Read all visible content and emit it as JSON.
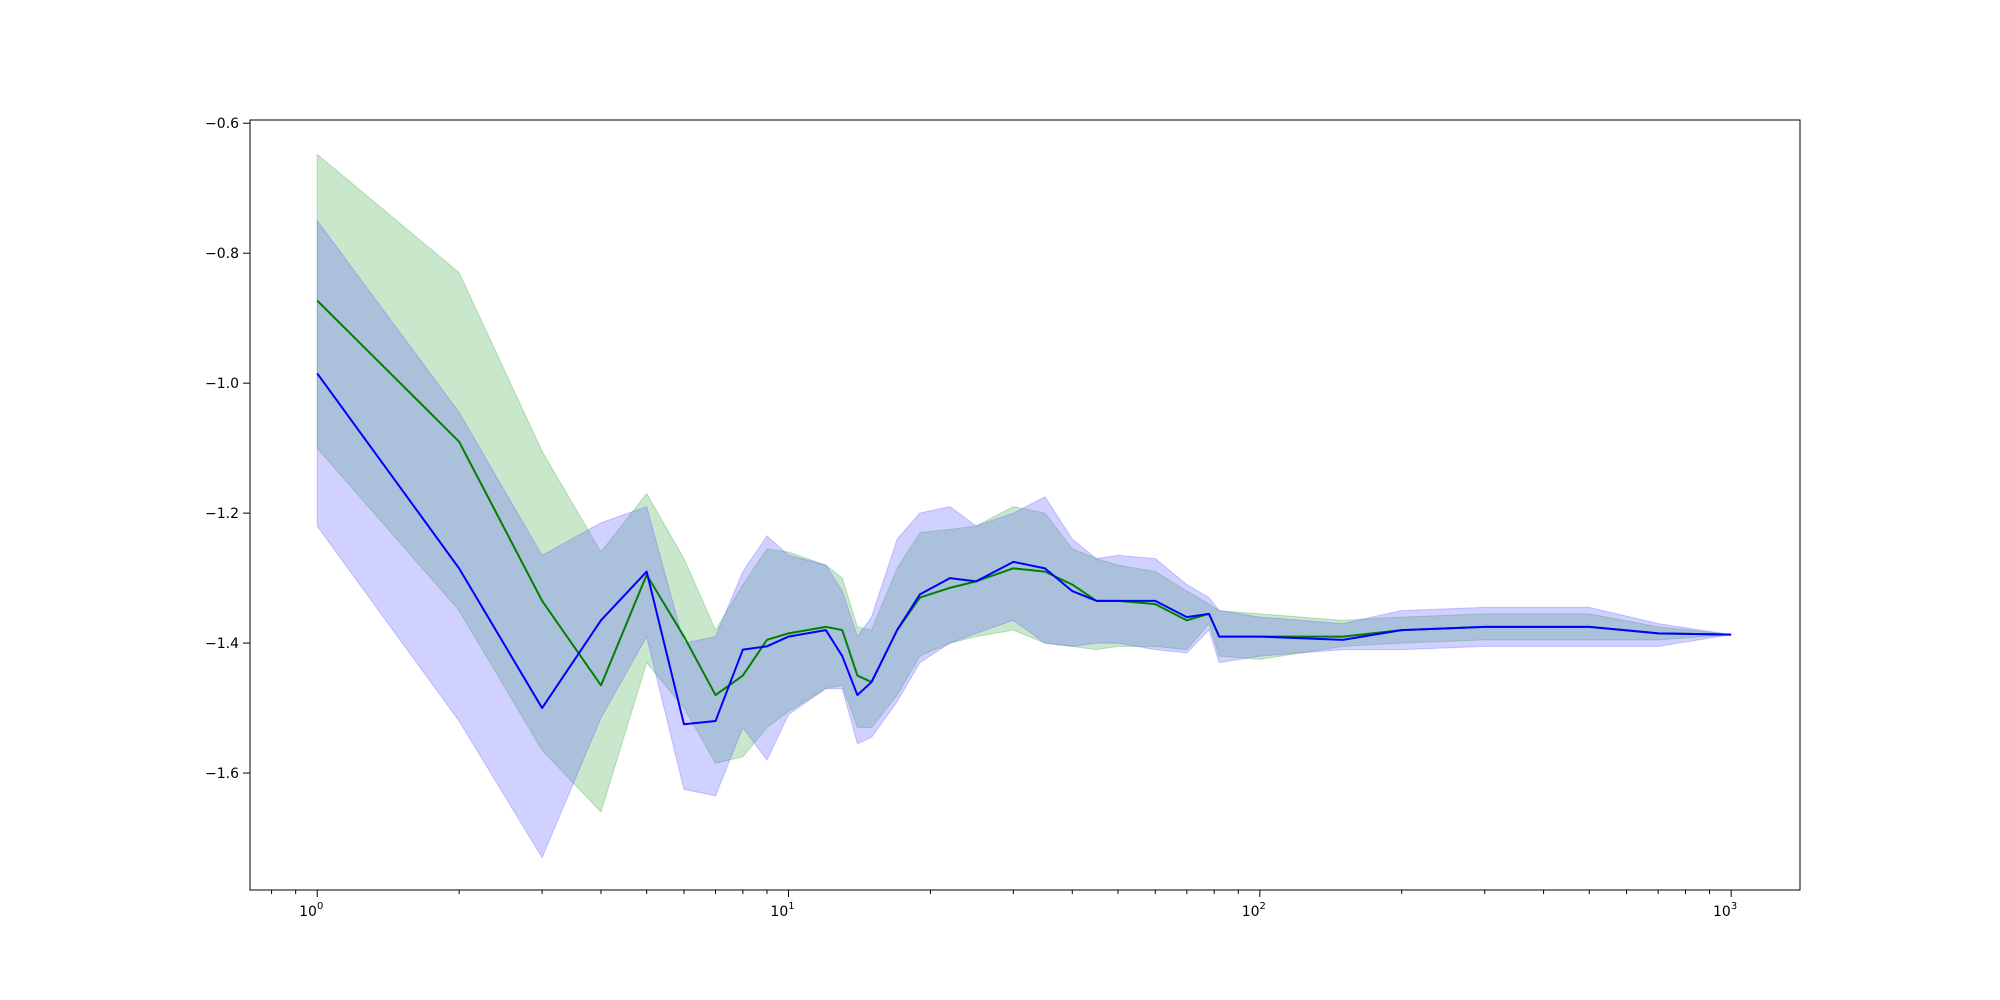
{
  "chart_data": {
    "type": "line",
    "xscale": "log",
    "xlim": [
      0.72,
      1400
    ],
    "ylim": [
      -1.78,
      -0.595
    ],
    "x_ticks": [
      {
        "value": 1,
        "base": "10",
        "exp": "0"
      },
      {
        "value": 10,
        "base": "10",
        "exp": "1"
      },
      {
        "value": 100,
        "base": "10",
        "exp": "2"
      },
      {
        "value": 1000,
        "base": "10",
        "exp": "3"
      }
    ],
    "y_ticks": [
      {
        "value": -0.6,
        "label": "−0.6"
      },
      {
        "value": -0.8,
        "label": "−0.8"
      },
      {
        "value": -1.0,
        "label": "−1.0"
      },
      {
        "value": -1.2,
        "label": "−1.2"
      },
      {
        "value": -1.4,
        "label": "−1.4"
      },
      {
        "value": -1.6,
        "label": "−1.6"
      }
    ],
    "grid": false,
    "series": [
      {
        "color": "#008000",
        "band_color": "#4caf50",
        "x": [
          1,
          2,
          3,
          4,
          5,
          6,
          7,
          8,
          9,
          10,
          12,
          13,
          14,
          15,
          17,
          19,
          22,
          25,
          30,
          35,
          40,
          45,
          50,
          60,
          70,
          78,
          82,
          100,
          150,
          200,
          300,
          500,
          700,
          1000
        ],
        "y": [
          -0.873,
          -1.09,
          -1.335,
          -1.465,
          -1.295,
          -1.39,
          -1.48,
          -1.45,
          -1.395,
          -1.385,
          -1.375,
          -1.38,
          -1.45,
          -1.46,
          -1.38,
          -1.33,
          -1.315,
          -1.305,
          -1.285,
          -1.29,
          -1.31,
          -1.335,
          -1.335,
          -1.34,
          -1.365,
          -1.355,
          -1.39,
          -1.39,
          -1.39,
          -1.38,
          -1.375,
          -1.375,
          -1.385,
          -1.387
        ],
        "upper": [
          -0.648,
          -0.83,
          -1.105,
          -1.26,
          -1.17,
          -1.27,
          -1.38,
          -1.31,
          -1.255,
          -1.26,
          -1.28,
          -1.3,
          -1.375,
          -1.38,
          -1.285,
          -1.23,
          -1.225,
          -1.22,
          -1.19,
          -1.2,
          -1.255,
          -1.27,
          -1.28,
          -1.29,
          -1.32,
          -1.34,
          -1.35,
          -1.355,
          -1.365,
          -1.36,
          -1.355,
          -1.355,
          -1.375,
          -1.387
        ],
        "lower": [
          -1.1,
          -1.35,
          -1.565,
          -1.66,
          -1.43,
          -1.5,
          -1.585,
          -1.575,
          -1.53,
          -1.505,
          -1.47,
          -1.465,
          -1.53,
          -1.53,
          -1.48,
          -1.42,
          -1.4,
          -1.39,
          -1.38,
          -1.4,
          -1.405,
          -1.41,
          -1.405,
          -1.405,
          -1.41,
          -1.37,
          -1.42,
          -1.425,
          -1.405,
          -1.4,
          -1.395,
          -1.395,
          -1.395,
          -1.387
        ]
      },
      {
        "color": "#0000ff",
        "band_color": "#6666ff",
        "x": [
          1,
          2,
          3,
          4,
          5,
          6,
          7,
          8,
          9,
          10,
          12,
          13,
          14,
          15,
          17,
          19,
          22,
          25,
          30,
          35,
          40,
          45,
          50,
          60,
          70,
          78,
          82,
          100,
          150,
          200,
          300,
          500,
          700,
          1000
        ],
        "y": [
          -0.985,
          -1.285,
          -1.5,
          -1.365,
          -1.29,
          -1.525,
          -1.52,
          -1.41,
          -1.405,
          -1.39,
          -1.38,
          -1.42,
          -1.48,
          -1.46,
          -1.38,
          -1.325,
          -1.3,
          -1.305,
          -1.275,
          -1.285,
          -1.32,
          -1.335,
          -1.335,
          -1.335,
          -1.36,
          -1.355,
          -1.39,
          -1.39,
          -1.395,
          -1.38,
          -1.375,
          -1.375,
          -1.385,
          -1.387
        ],
        "upper": [
          -0.75,
          -1.045,
          -1.265,
          -1.215,
          -1.19,
          -1.4,
          -1.39,
          -1.29,
          -1.235,
          -1.265,
          -1.28,
          -1.32,
          -1.39,
          -1.36,
          -1.24,
          -1.2,
          -1.19,
          -1.22,
          -1.2,
          -1.175,
          -1.24,
          -1.27,
          -1.265,
          -1.27,
          -1.31,
          -1.33,
          -1.35,
          -1.36,
          -1.37,
          -1.35,
          -1.345,
          -1.345,
          -1.37,
          -1.387
        ],
        "lower": [
          -1.22,
          -1.52,
          -1.73,
          -1.515,
          -1.39,
          -1.625,
          -1.635,
          -1.53,
          -1.58,
          -1.51,
          -1.47,
          -1.47,
          -1.555,
          -1.545,
          -1.49,
          -1.43,
          -1.4,
          -1.385,
          -1.365,
          -1.4,
          -1.405,
          -1.4,
          -1.4,
          -1.41,
          -1.415,
          -1.38,
          -1.43,
          -1.42,
          -1.41,
          -1.41,
          -1.405,
          -1.405,
          -1.405,
          -1.387
        ]
      }
    ]
  }
}
